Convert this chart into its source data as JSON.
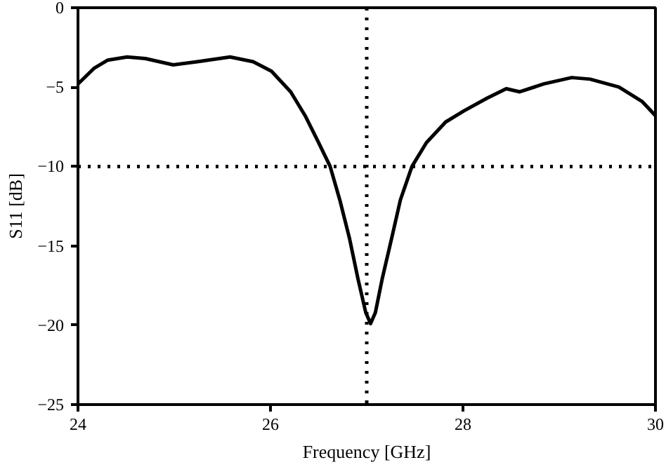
{
  "chart_data": {
    "type": "line",
    "xlabel": "Frequency [GHz]",
    "ylabel": "S11 [dB]",
    "xlim": [
      24,
      30
    ],
    "ylim": [
      -25,
      0
    ],
    "xticks": [
      24,
      26,
      28,
      30
    ],
    "yticks": [
      -25,
      -20,
      -15,
      -10,
      -5,
      0
    ],
    "grid": false,
    "marker": "none",
    "line_style": "solid",
    "series": [
      {
        "color": "#000000",
        "x": [
          24,
          24.17,
          24.31,
          24.51,
          24.7,
          24.99,
          25.24,
          25.58,
          25.82,
          26.01,
          26.21,
          26.36,
          26.5,
          26.62,
          26.72,
          26.82,
          26.91,
          26.99,
          27.04,
          27.09,
          27.16,
          27.26,
          27.35,
          27.47,
          27.62,
          27.82,
          28.01,
          28.25,
          28.45,
          28.59,
          28.84,
          29.13,
          29.32,
          29.62,
          29.86,
          30
        ],
        "values": [
          -4.8,
          -3.8,
          -3.3,
          -3.1,
          -3.2,
          -3.6,
          -3.4,
          -3.1,
          -3.4,
          -4.0,
          -5.3,
          -6.8,
          -8.5,
          -10.0,
          -12.1,
          -14.5,
          -17.1,
          -19.2,
          -19.9,
          -19.2,
          -17.1,
          -14.5,
          -12.1,
          -10.0,
          -8.5,
          -7.2,
          -6.5,
          -5.7,
          -5.1,
          -5.3,
          -4.8,
          -4.4,
          -4.5,
          -5.0,
          -5.9,
          -6.8
        ]
      }
    ],
    "ref_lines": [
      {
        "axis": "x",
        "value": 27,
        "line_style": "dotted",
        "color": "#000000"
      },
      {
        "axis": "y",
        "value": -10,
        "line_style": "dotted",
        "color": "#000000"
      }
    ]
  }
}
